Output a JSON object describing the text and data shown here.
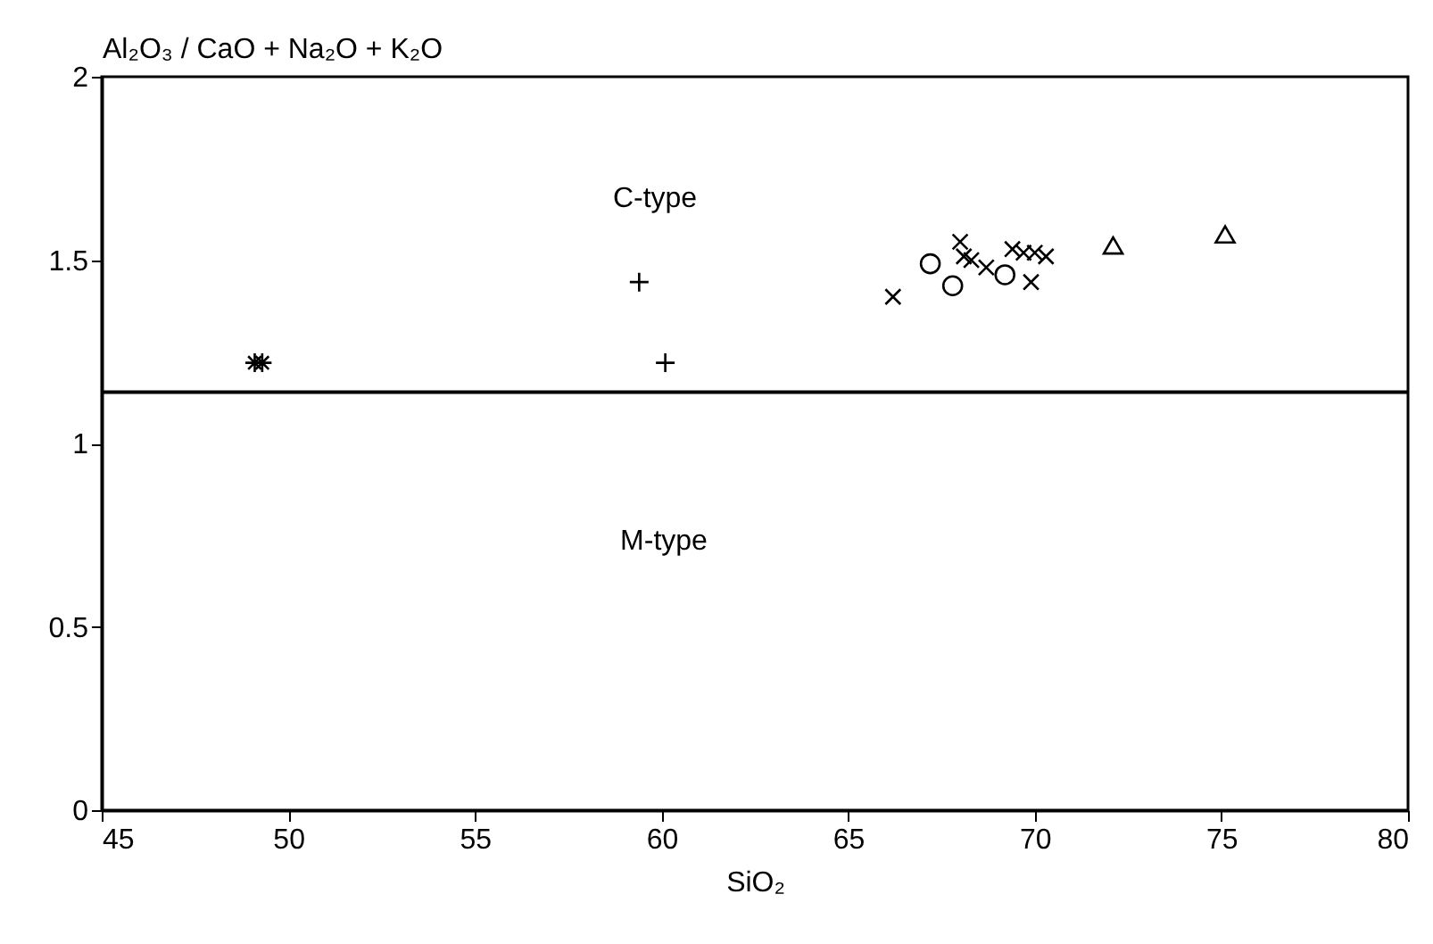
{
  "chart_data": {
    "type": "scatter",
    "xlabel": "SiO₂",
    "ylabel": "Al₂O₃ / CaO + Na₂O + K₂O",
    "xlim": [
      45,
      80
    ],
    "xticks": [
      45,
      50,
      55,
      60,
      65,
      70,
      75,
      80
    ],
    "ylim": [
      0,
      2
    ],
    "yticks": [
      0,
      0.5,
      1,
      1.5,
      2
    ],
    "grid": false,
    "series": [
      {
        "color": "#000000",
        "marker": "cross",
        "x": [
          49.1,
          49.3
        ],
        "values": [
          1.22,
          1.22
        ]
      },
      {
        "color": "#000000",
        "marker": "plus",
        "x": [
          59.4,
          60.1
        ],
        "values": [
          1.44,
          1.22
        ]
      },
      {
        "color": "#000000",
        "marker": "x",
        "x": [
          66.2,
          68.0,
          68.1,
          68.3,
          68.7,
          69.4,
          69.7,
          70.0,
          70.3,
          69.9
        ],
        "values": [
          1.4,
          1.55,
          1.51,
          1.5,
          1.48,
          1.53,
          1.52,
          1.52,
          1.51,
          1.44
        ]
      },
      {
        "color": "#000000",
        "marker": "circle",
        "x": [
          67.2,
          67.8,
          69.2
        ],
        "values": [
          1.49,
          1.43,
          1.46
        ]
      },
      {
        "color": "#000000",
        "marker": "triangle",
        "x": [
          72.1,
          75.1
        ],
        "values": [
          1.54,
          1.57
        ]
      }
    ],
    "ref_lines": [
      {
        "axis": "y",
        "value": 1.14,
        "color": "#000000"
      }
    ],
    "annotations": [
      "C-type",
      "M-type"
    ]
  }
}
